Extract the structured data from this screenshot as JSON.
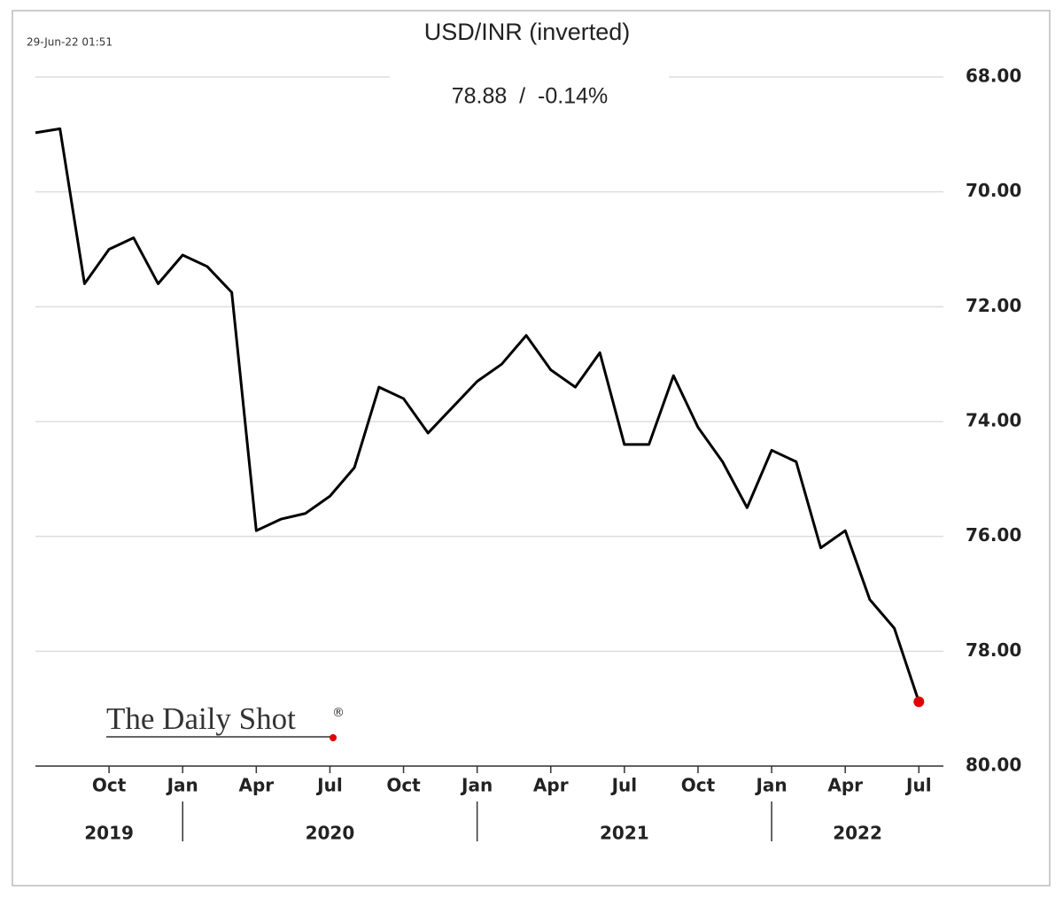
{
  "chart_data": {
    "type": "line",
    "title": "USD/INR (inverted)",
    "subtitle": "78.88  /  -0.14%",
    "timestamp": "29-Jun-22 01:51",
    "logo": "The Daily Shot",
    "logo_mark": "®",
    "x": [
      "2019-07",
      "2019-08",
      "2019-09",
      "2019-10",
      "2019-11",
      "2019-12",
      "2020-01",
      "2020-02",
      "2020-03",
      "2020-04",
      "2020-05",
      "2020-06",
      "2020-07",
      "2020-08",
      "2020-09",
      "2020-10",
      "2020-11",
      "2020-12",
      "2021-01",
      "2021-02",
      "2021-03",
      "2021-04",
      "2021-05",
      "2021-06",
      "2021-07",
      "2021-08",
      "2021-09",
      "2021-10",
      "2021-11",
      "2021-12",
      "2022-01",
      "2022-02",
      "2022-03",
      "2022-04",
      "2022-05",
      "2022-06",
      "2022-07"
    ],
    "series": [
      {
        "name": "USD/INR",
        "color": "#000000",
        "values": [
          68.97,
          68.9,
          71.6,
          71.0,
          70.8,
          71.6,
          71.1,
          71.3,
          71.75,
          75.9,
          75.7,
          75.6,
          75.3,
          74.8,
          73.4,
          73.6,
          74.2,
          73.75,
          73.3,
          73.0,
          72.5,
          73.1,
          73.4,
          72.8,
          74.4,
          74.4,
          73.2,
          74.1,
          74.7,
          75.5,
          74.5,
          74.7,
          76.2,
          75.9,
          77.1,
          77.6,
          78.88
        ]
      }
    ],
    "last_point_color": "#e00000",
    "xlim": [
      "2019-07",
      "2022-08"
    ],
    "xticks": [
      {
        "value": "2019-10",
        "label": "Oct"
      },
      {
        "value": "2020-01",
        "label": "Jan"
      },
      {
        "value": "2020-04",
        "label": "Apr"
      },
      {
        "value": "2020-07",
        "label": "Jul"
      },
      {
        "value": "2020-10",
        "label": "Oct"
      },
      {
        "value": "2021-01",
        "label": "Jan"
      },
      {
        "value": "2021-04",
        "label": "Apr"
      },
      {
        "value": "2021-07",
        "label": "Jul"
      },
      {
        "value": "2021-10",
        "label": "Oct"
      },
      {
        "value": "2022-01",
        "label": "Jan"
      },
      {
        "value": "2022-04",
        "label": "Apr"
      },
      {
        "value": "2022-07",
        "label": "Jul"
      }
    ],
    "years": [
      "2019",
      "2020",
      "2021",
      "2022"
    ],
    "ylim": [
      68,
      80
    ],
    "y_inverted": true,
    "yticks": [
      {
        "value": 68,
        "label": "68.00"
      },
      {
        "value": 70,
        "label": "70.00"
      },
      {
        "value": 72,
        "label": "72.00"
      },
      {
        "value": 74,
        "label": "74.00"
      },
      {
        "value": 76,
        "label": "76.00"
      },
      {
        "value": 78,
        "label": "78.00"
      },
      {
        "value": 80,
        "label": "80.00"
      }
    ],
    "grid": true
  }
}
